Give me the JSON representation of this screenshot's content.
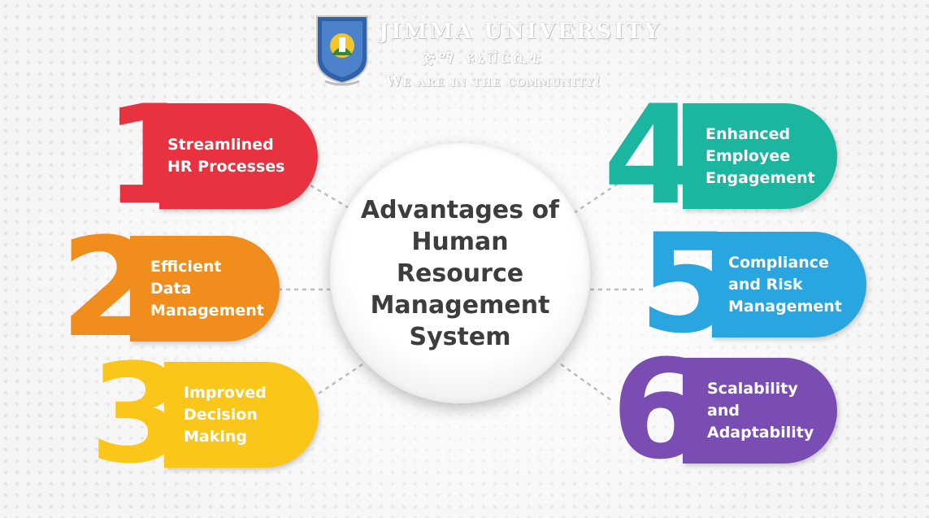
{
  "header": {
    "university_name": "JIMMA UNIVERSITY",
    "university_name_amharic": "ጅማ ዩኒቨርሲቲ",
    "motto": "We are in the community!"
  },
  "center": {
    "title": "Advantages of Human Resource Management System"
  },
  "items": [
    {
      "number": "1",
      "label": "Streamlined\nHR Processes",
      "color": "#e8323f"
    },
    {
      "number": "2",
      "label": "Efficient\nData\nManagement",
      "color": "#f08d1c"
    },
    {
      "number": "3",
      "label": "Improved\nDecision\nMaking",
      "color": "#fbc61a"
    },
    {
      "number": "4",
      "label": "Enhanced\nEmployee\nEngagement",
      "color": "#1bb6a0"
    },
    {
      "number": "5",
      "label": "Compliance\nand Risk\nManagement",
      "color": "#29a6e0"
    },
    {
      "number": "6",
      "label": "Scalability\nand\nAdaptability",
      "color": "#7a4db3"
    }
  ],
  "colors": {
    "background": "#f5f5f5",
    "center_text": "#3d3d3d"
  }
}
